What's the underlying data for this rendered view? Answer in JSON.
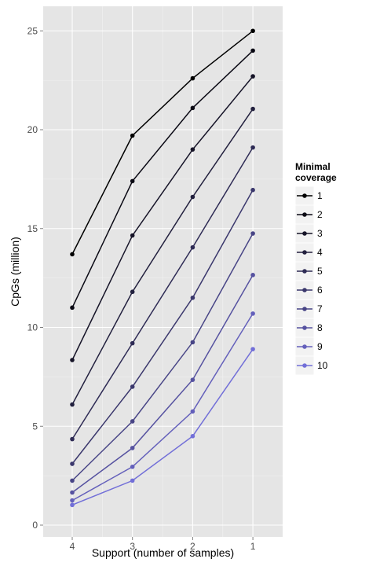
{
  "chart_data": {
    "type": "line",
    "xlabel": "Support (number of samples)",
    "ylabel": "CpGs (million)",
    "categories": [
      "4",
      "3",
      "2",
      "1"
    ],
    "ylim": [
      0,
      26.5
    ],
    "y_ticks": [
      "0",
      "5",
      "10",
      "15",
      "20",
      "25"
    ],
    "grid": true,
    "legend": {
      "title_lines": [
        "Minimal",
        "coverage"
      ],
      "position": "right"
    },
    "series": [
      {
        "name": "1",
        "color": "#000000",
        "values": [
          13.7,
          19.7,
          22.6,
          25.0
        ]
      },
      {
        "name": "2",
        "color": "#0a0914",
        "values": [
          11.0,
          17.4,
          21.1,
          24.0
        ]
      },
      {
        "name": "3",
        "color": "#161428",
        "values": [
          8.35,
          14.65,
          19.0,
          22.7
        ]
      },
      {
        "name": "4",
        "color": "#22203e",
        "values": [
          6.1,
          11.8,
          16.6,
          21.05
        ]
      },
      {
        "name": "5",
        "color": "#2e2b55",
        "values": [
          4.35,
          9.2,
          14.05,
          19.1
        ]
      },
      {
        "name": "6",
        "color": "#3b386d",
        "values": [
          3.1,
          7.0,
          11.5,
          16.95
        ]
      },
      {
        "name": "7",
        "color": "#484586",
        "values": [
          2.25,
          5.25,
          9.25,
          14.75
        ]
      },
      {
        "name": "8",
        "color": "#5652a0",
        "values": [
          1.65,
          3.9,
          7.35,
          12.65
        ]
      },
      {
        "name": "9",
        "color": "#6460bb",
        "values": [
          1.25,
          2.95,
          5.75,
          10.7
        ]
      },
      {
        "name": "10",
        "color": "#726fd8",
        "values": [
          1.02,
          2.25,
          4.5,
          8.9
        ]
      }
    ]
  }
}
